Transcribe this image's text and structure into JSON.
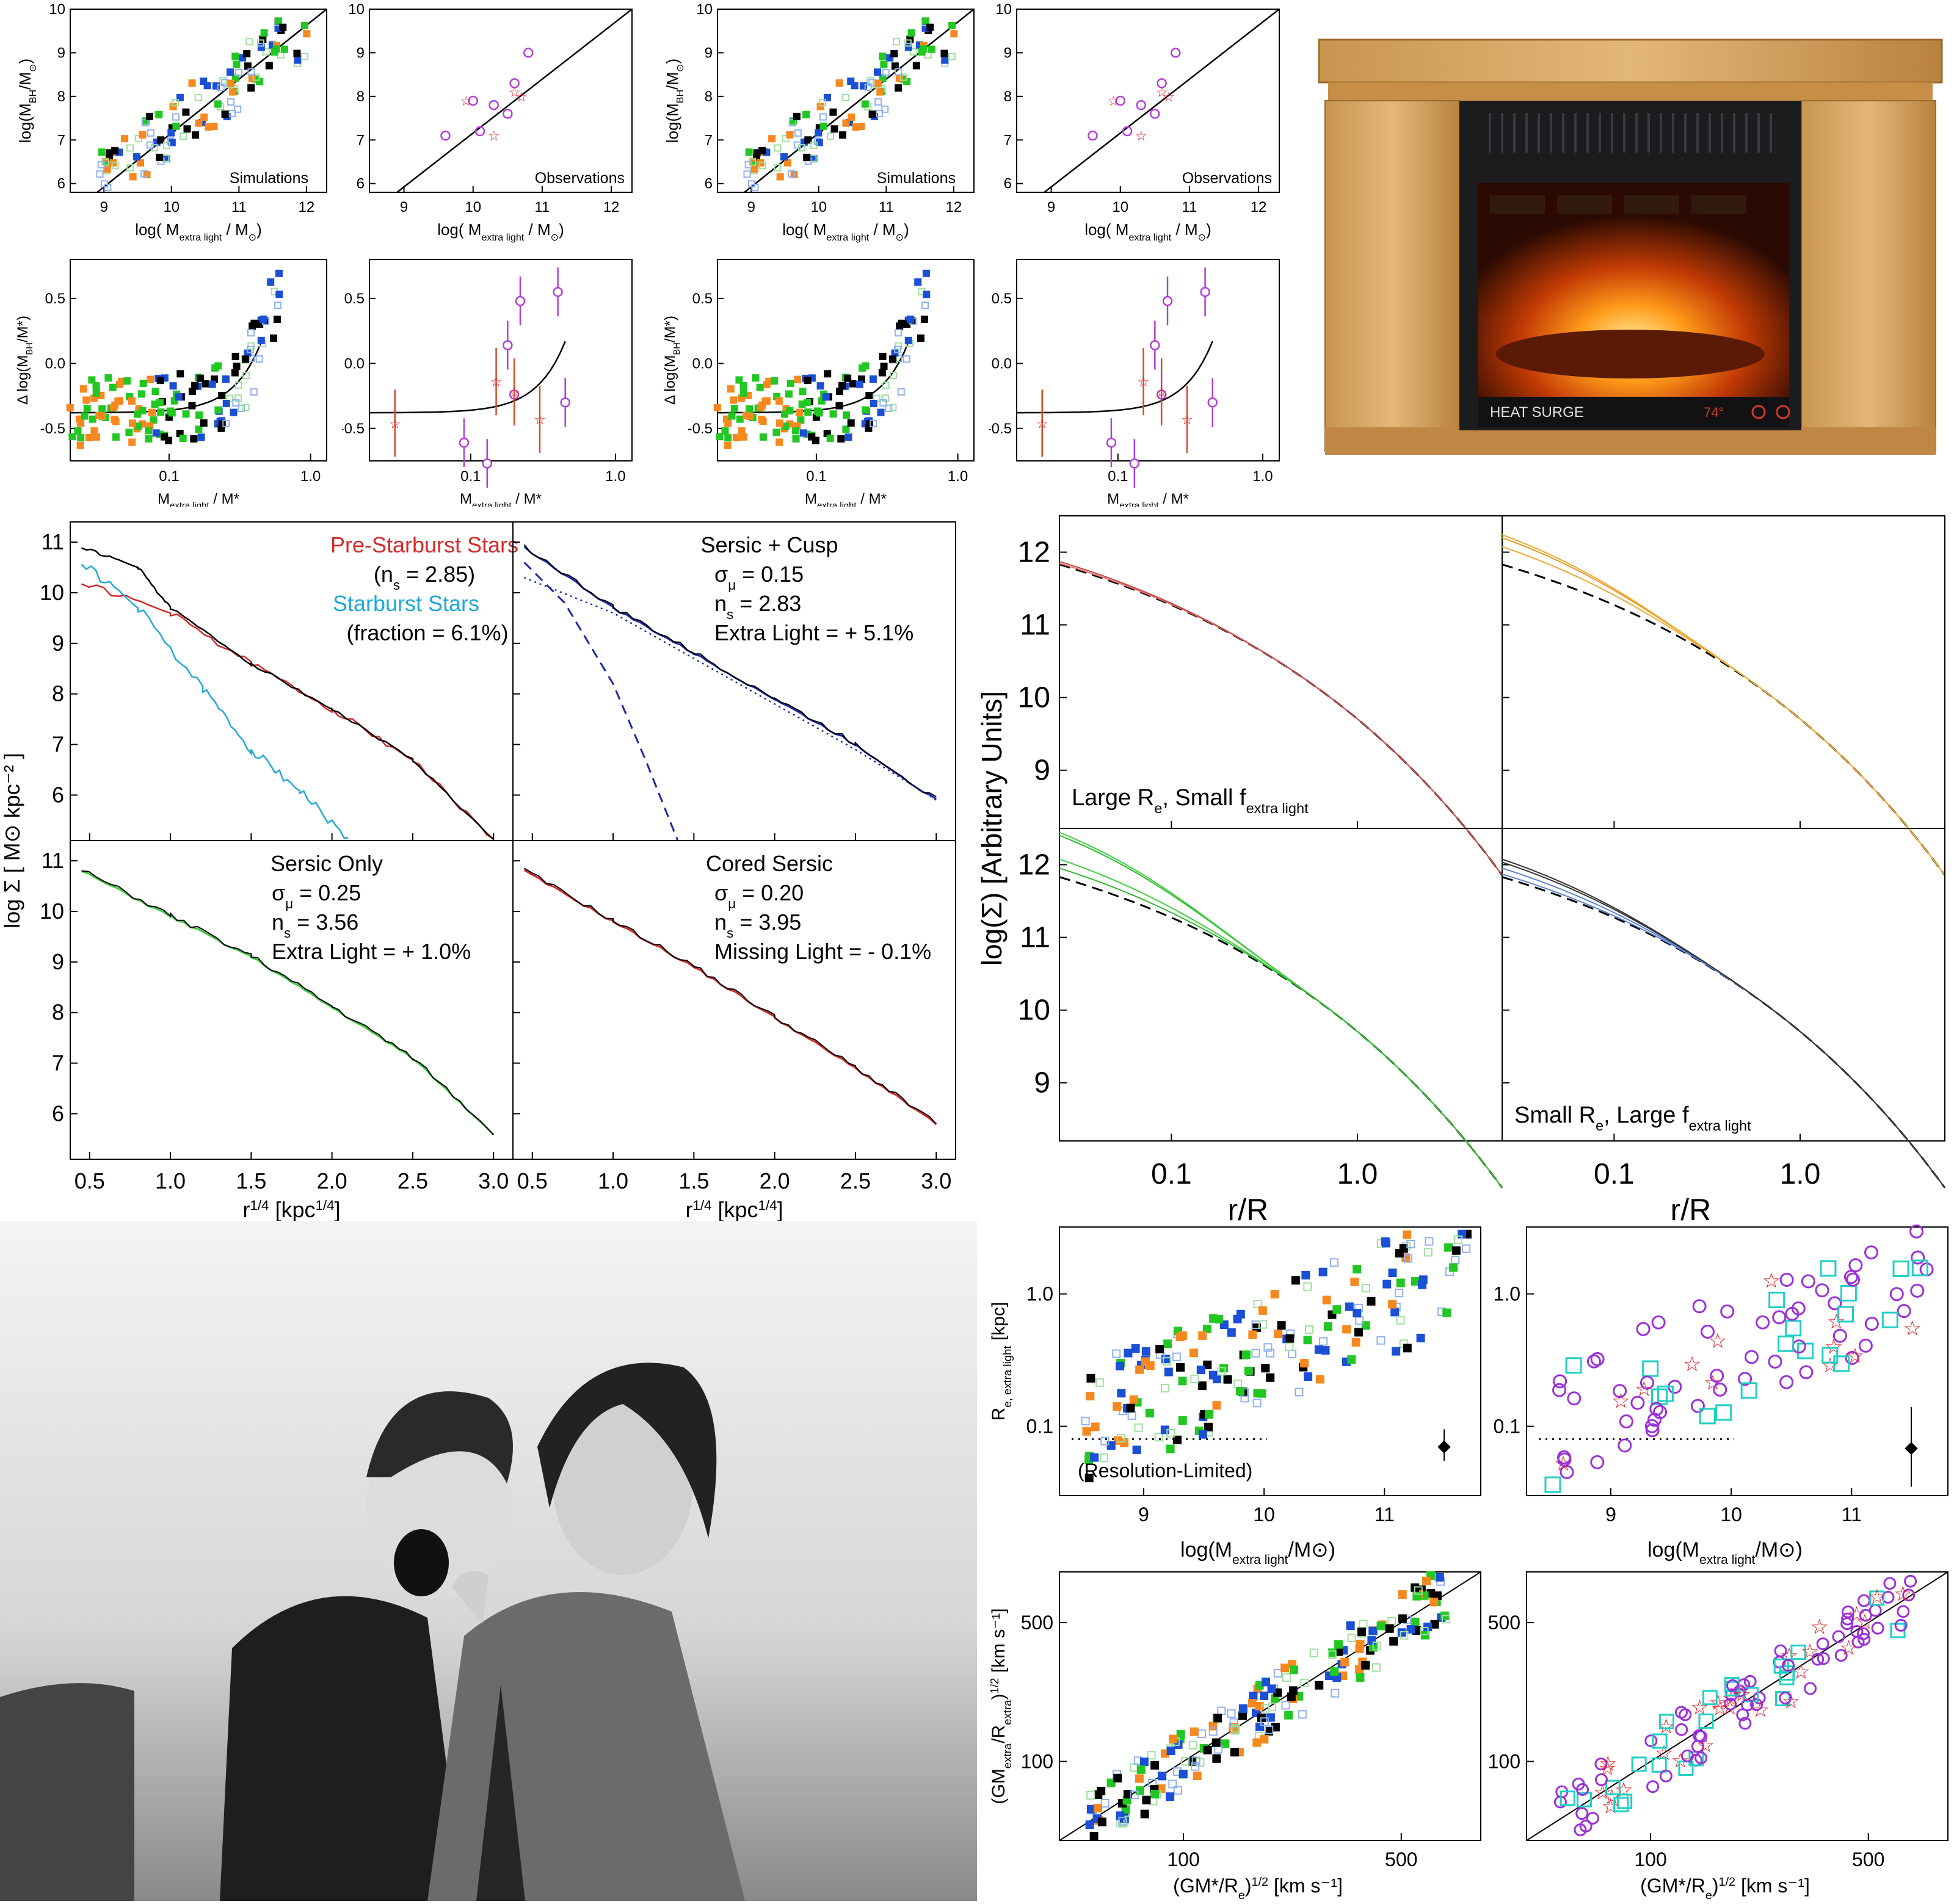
{
  "top_panels": {
    "sim_label": "Simulations",
    "obs_label": "Observations",
    "bh_ylabel": "log(M",
    "bh_ylabel_sub": "BH",
    "bh_ylabel_end": "/M",
    "bh_xlabel": "log( M",
    "bh_xlabel_sub": "extra light",
    "bh_xlabel_end": " / M",
    "bh_yticks": [
      "6",
      "7",
      "8",
      "9",
      "10"
    ],
    "bh_xticks": [
      "9",
      "10",
      "11",
      "12"
    ],
    "res_ylabel": "Δ log(M",
    "res_ylabel_sub": "BH",
    "res_ylabel_end": "/M",
    "res_ylabel_tail": "*)",
    "res_yticks": [
      "-0.5",
      "0.0",
      "0.5"
    ],
    "res_xticks": [
      "0.1",
      "1.0"
    ],
    "res_xlabel": "M",
    "res_xlabel_sub": "extra light",
    "res_xlabel_end": " / M*"
  },
  "profile_panels": {
    "ylabel": "log Σ  [ M⊙ kpc⁻² ]",
    "xlabel": "r",
    "xlabel_sup": "1/4",
    "xlabel_end": " [kpc",
    "xlabel_end_sup": "1/4",
    "xlabel_close": "]",
    "xticks": [
      "0.5",
      "1.0",
      "1.5",
      "2.0",
      "2.5",
      "3.0"
    ],
    "yticks": [
      "6",
      "7",
      "8",
      "9",
      "10",
      "11"
    ],
    "p1": {
      "l1": "Pre-Starburst Stars",
      "l2": "(n",
      "l2sub": "s",
      "l2end": " = 2.85)",
      "l3": "Starburst Stars",
      "l4": "(fraction = 6.1%)"
    },
    "p2": {
      "l1": "Sersic + Cusp",
      "l2": "σ",
      "l2sub": "μ",
      "l2end": " = 0.15",
      "l3": "n",
      "l3sub": "s",
      "l3end": " = 2.83",
      "l4": "Extra Light = + 5.1%"
    },
    "p3": {
      "l1": "Sersic Only",
      "l2": "σ",
      "l2sub": "μ",
      "l2end": " = 0.25",
      "l3": "n",
      "l3sub": "s",
      "l3end": " = 3.56",
      "l4": "Extra Light = + 1.0%"
    },
    "p4": {
      "l1": "Cored Sersic",
      "l2": "σ",
      "l2sub": "μ",
      "l2end": " = 0.20",
      "l3": "n",
      "l3sub": "s",
      "l3end": " = 3.95",
      "l4": "Missing Light = - 0.1%"
    }
  },
  "arb_panels": {
    "ylabel": "log(Σ)  [Arbitrary Units]",
    "xlabel": "r/R",
    "xlabel_sub": "e",
    "xticks": [
      "0.1",
      "1.0"
    ],
    "yticks": [
      "9",
      "10",
      "11",
      "12"
    ],
    "label_top": "Large R",
    "label_top_sub": "e",
    "label_top_mid": ", Small f",
    "label_top_sub2": "extra light",
    "label_bot": "Small R",
    "label_bot_sub": "e",
    "label_bot_mid": ", Large f",
    "label_bot_sub2": "extra light"
  },
  "re_panels": {
    "ylabel": "R",
    "ylabel_sub": "e, extra light",
    "ylabel_end": "  [kpc]",
    "yticks": [
      "0.1",
      "1.0"
    ],
    "xticks": [
      "9",
      "10",
      "11"
    ],
    "xlabel": "log(M",
    "xlabel_sub": "extra light",
    "xlabel_end": "/M⊙)",
    "res_note": "(Resolution-Limited)"
  },
  "vel_panels": {
    "ylabel": "(GM",
    "ylabel_sub": "extra",
    "ylabel_mid": "/R",
    "ylabel_sub2": "extra",
    "ylabel_end": ")",
    "ylabel_sup": "1/2",
    "ylabel_unit": "  [km s⁻¹]",
    "yticks": [
      "100",
      "500"
    ],
    "xticks": [
      "100",
      "500"
    ],
    "xlabel": "(GM*/R",
    "xlabel_sub": "e",
    "xlabel_end": ")",
    "xlabel_sup": "1/2",
    "xlabel_unit": "  [km s⁻¹]"
  },
  "heater": {
    "brand": "HEAT SURGE",
    "temp": "74°"
  },
  "chart_data": [
    {
      "type": "scatter",
      "panel": "bh-sim",
      "xlabel": "log( M extra light / M⊙)",
      "ylabel": "log(M BH/M⊙)",
      "xlim": [
        8.5,
        12.3
      ],
      "ylim": [
        5.8,
        10
      ],
      "annotation": "Simulations",
      "series": [
        {
          "values": [
            [
              9.0,
              6.1
            ],
            [
              9.4,
              6.5
            ],
            [
              9.8,
              7.0
            ],
            [
              10.2,
              7.6
            ],
            [
              10.6,
              8.2
            ],
            [
              11.0,
              8.7
            ],
            [
              11.4,
              9.2
            ]
          ]
        }
      ]
    },
    {
      "type": "scatter",
      "panel": "bh-obs",
      "xlim": [
        8.5,
        12.3
      ],
      "ylim": [
        5.8,
        10
      ],
      "annotation": "Observations",
      "series": [
        {
          "values": [
            [
              9.6,
              7.1
            ],
            [
              10.0,
              7.9
            ],
            [
              10.1,
              7.2
            ],
            [
              10.3,
              7.8
            ],
            [
              10.5,
              7.6
            ],
            [
              10.6,
              8.3
            ],
            [
              10.8,
              9.0
            ]
          ]
        },
        {
          "values": [
            [
              9.9,
              7.9
            ],
            [
              10.3,
              7.1
            ],
            [
              10.6,
              8.1
            ],
            [
              10.7,
              8.0
            ]
          ]
        }
      ]
    },
    {
      "type": "scatter",
      "panel": "dbh-sim",
      "xscale": "log",
      "xlim": [
        0.02,
        1.0
      ],
      "ylim": [
        -0.7,
        0.8
      ],
      "series": [
        {
          "values": []
        }
      ]
    },
    {
      "type": "scatter",
      "panel": "dbh-obs",
      "xscale": "log",
      "xlim": [
        0.02,
        1.0
      ],
      "ylim": [
        -0.7,
        0.8
      ],
      "series": [
        {
          "values": [
            [
              0.09,
              -0.61
            ],
            [
              0.13,
              -0.77
            ],
            [
              0.18,
              0.14
            ],
            [
              0.2,
              -0.24
            ],
            [
              0.22,
              0.48
            ],
            [
              0.4,
              0.55
            ],
            [
              0.45,
              -0.3
            ]
          ]
        },
        {
          "values": [
            [
              0.03,
              -0.46
            ],
            [
              0.15,
              -0.14
            ],
            [
              0.3,
              -0.43
            ],
            [
              0.2,
              -0.22
            ]
          ]
        }
      ]
    },
    {
      "type": "line",
      "panel": "profile-1",
      "xlabel": "r^1/4 [kpc^1/4]",
      "ylabel": "log Σ [M⊙ kpc^-2]",
      "xlim": [
        0.4,
        3.1
      ],
      "ylim": [
        5.1,
        11.3
      ],
      "series": [
        {
          "name": "Pre-Starburst Stars",
          "x": [
            0.45,
            1.0,
            1.5,
            2.0,
            2.5,
            3.0
          ],
          "values": [
            10.2,
            9.6,
            8.6,
            7.7,
            6.7,
            5.1
          ]
        },
        {
          "name": "Starburst Stars",
          "x": [
            0.45,
            0.8,
            1.2,
            1.5,
            1.8,
            2.1
          ],
          "values": [
            10.6,
            9.7,
            8.1,
            6.9,
            6.1,
            5.1
          ]
        }
      ]
    },
    {
      "type": "line",
      "panel": "profile-2",
      "xlim": [
        0.4,
        3.1
      ],
      "ylim": [
        5.1,
        11.3
      ],
      "series": [
        {
          "x": [
            0.45,
            1.0,
            1.5,
            2.0,
            2.5,
            3.0
          ],
          "values": [
            10.9,
            9.7,
            8.8,
            7.9,
            7.0,
            5.9
          ]
        }
      ]
    },
    {
      "type": "line",
      "panel": "profile-3",
      "xlim": [
        0.4,
        3.1
      ],
      "ylim": [
        5.1,
        11.3
      ],
      "series": [
        {
          "x": [
            0.45,
            1.0,
            1.5,
            2.0,
            2.5,
            3.0
          ],
          "values": [
            10.8,
            9.9,
            9.1,
            8.1,
            7.1,
            5.6
          ]
        }
      ]
    },
    {
      "type": "line",
      "panel": "profile-4",
      "xlim": [
        0.4,
        3.1
      ],
      "ylim": [
        5.1,
        11.3
      ],
      "series": [
        {
          "x": [
            0.45,
            1.0,
            1.5,
            2.0,
            2.5,
            3.0
          ],
          "values": [
            10.8,
            9.8,
            8.9,
            7.9,
            6.9,
            5.8
          ]
        }
      ]
    },
    {
      "type": "scatter",
      "panel": "re-sim",
      "xlabel": "log(M extra light/M⊙)",
      "ylabel": "R e, extra light [kpc]",
      "yscale": "log",
      "xlim": [
        8.3,
        11.8
      ],
      "ylim": [
        0.03,
        3
      ],
      "series": [
        {
          "values": []
        }
      ]
    },
    {
      "type": "scatter",
      "panel": "re-obs",
      "yscale": "log",
      "xlim": [
        8.3,
        11.8
      ],
      "ylim": [
        0.03,
        3
      ],
      "series": [
        {
          "values": []
        }
      ]
    },
    {
      "type": "scatter",
      "panel": "vel-sim",
      "xscale": "log",
      "yscale": "log",
      "xlim": [
        40,
        900
      ],
      "ylim": [
        40,
        900
      ],
      "series": [
        {
          "values": []
        }
      ]
    },
    {
      "type": "scatter",
      "panel": "vel-obs",
      "xscale": "log",
      "yscale": "log",
      "xlim": [
        40,
        900
      ],
      "ylim": [
        40,
        900
      ],
      "series": [
        {
          "values": []
        }
      ]
    }
  ]
}
